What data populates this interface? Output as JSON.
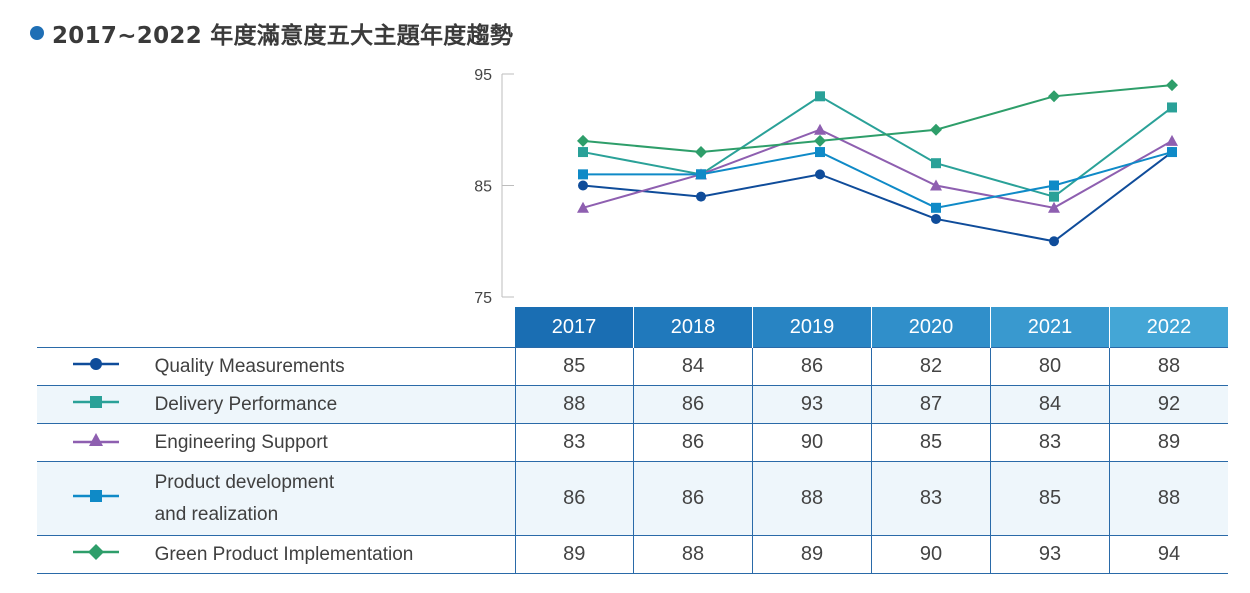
{
  "title": "2017~2022 年度滿意度五大主題年度趨勢",
  "colors": {
    "title_dot": "#1f6fb5",
    "header_gradient": [
      "#1a6eb3",
      "#2a86c4",
      "#3a99cf",
      "#44a6d6"
    ],
    "grid_line": "#2a6aa8",
    "alt_row": "#eef6fb"
  },
  "chart_data": {
    "type": "line",
    "x": [
      "2017",
      "2018",
      "2019",
      "2020",
      "2021",
      "2022"
    ],
    "ylim": [
      75,
      95
    ],
    "yticks": [
      75,
      85,
      95
    ],
    "series": [
      {
        "name": "Quality Measurements",
        "color": "#0f4c9a",
        "marker": "circle",
        "values": [
          85,
          84,
          86,
          82,
          80,
          88
        ]
      },
      {
        "name": "Delivery Performance",
        "color": "#2aa198",
        "marker": "square",
        "values": [
          88,
          86,
          93,
          87,
          84,
          92
        ]
      },
      {
        "name": "Engineering Support",
        "color": "#8e5fb0",
        "marker": "triangle",
        "values": [
          83,
          86,
          90,
          85,
          83,
          89
        ]
      },
      {
        "name": "Product development and realization",
        "color": "#0f8ac7",
        "marker": "square",
        "values": [
          86,
          86,
          88,
          83,
          85,
          88
        ]
      },
      {
        "name": "Green Product  Implementation",
        "color": "#2e9e6a",
        "marker": "diamond",
        "values": [
          89,
          88,
          89,
          90,
          93,
          94
        ]
      }
    ]
  },
  "table": {
    "years": [
      "2017",
      "2018",
      "2019",
      "2020",
      "2021",
      "2022"
    ],
    "rows": [
      {
        "label": "Quality Measurements",
        "values": [
          "85",
          "84",
          "86",
          "82",
          "80",
          "88"
        ]
      },
      {
        "label": "Delivery Performance",
        "values": [
          "88",
          "86",
          "93",
          "87",
          "84",
          "92"
        ]
      },
      {
        "label": "Engineering Support",
        "values": [
          "83",
          "86",
          "90",
          "85",
          "83",
          "89"
        ]
      },
      {
        "label_line1": "Product development",
        "label_line2": "and realization",
        "values": [
          "86",
          "86",
          "88",
          "83",
          "85",
          "88"
        ]
      },
      {
        "label": "Green Product  Implementation",
        "values": [
          "89",
          "88",
          "89",
          "90",
          "93",
          "94"
        ]
      }
    ]
  }
}
